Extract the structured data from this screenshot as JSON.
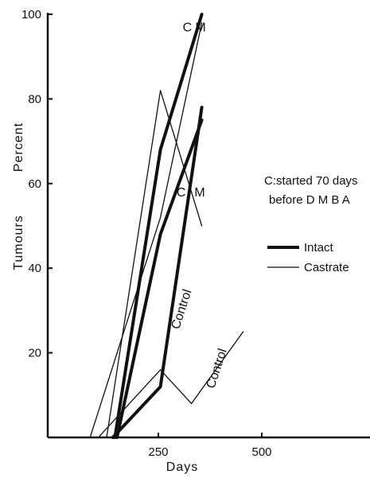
{
  "chart_data": {
    "type": "line",
    "xlabel": "Days",
    "ylabel_left": "Tumours",
    "ylabel_right": "Percent",
    "xlim": [
      0,
      750
    ],
    "ylim": [
      0,
      100
    ],
    "x_ticks": [
      250,
      500
    ],
    "y_ticks": [
      20,
      40,
      60,
      80,
      100
    ],
    "legend": {
      "position": "right",
      "entries": [
        {
          "label": "Intact",
          "style": "thick"
        },
        {
          "label": "Castrate",
          "style": "thin"
        }
      ]
    },
    "note": [
      "C:started 70 days",
      "before D M B A"
    ],
    "series": [
      {
        "name": "C",
        "group": "Intact",
        "x": [
          145,
          255,
          355
        ],
        "y": [
          0,
          68,
          100
        ]
      },
      {
        "name": "M",
        "group": "Intact",
        "x": [
          150,
          255,
          355
        ],
        "y": [
          0,
          48,
          75
        ]
      },
      {
        "name": "Control",
        "group": "Intact",
        "x": [
          140,
          255,
          355
        ],
        "y": [
          0,
          12,
          78
        ]
      },
      {
        "name": "C",
        "group": "Castrate",
        "x": [
          125,
          255,
          355
        ],
        "y": [
          0,
          82,
          50
        ]
      },
      {
        "name": "M",
        "group": "Castrate",
        "x": [
          85,
          255,
          355
        ],
        "y": [
          0,
          52,
          98
        ]
      },
      {
        "name": "Control",
        "group": "Castrate",
        "x": [
          105,
          255,
          330,
          455
        ],
        "y": [
          0,
          16,
          8,
          25
        ]
      }
    ],
    "line_labels": [
      {
        "text": "C",
        "x": 320,
        "y": 96
      },
      {
        "text": "M",
        "x": 352,
        "y": 96
      },
      {
        "text": "M",
        "x": 350,
        "y": 57
      },
      {
        "text": "C",
        "x": 305,
        "y": 57
      },
      {
        "text": "Control",
        "x": 315,
        "y": 30,
        "rotate": true
      },
      {
        "text": "Control",
        "x": 400,
        "y": 16,
        "rotate": true
      }
    ]
  }
}
